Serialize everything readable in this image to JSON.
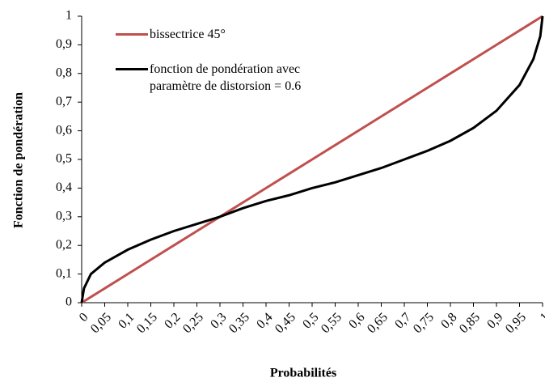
{
  "chart_data": {
    "type": "line",
    "xlabel": "Probabilités",
    "ylabel": "Fonction de pondération",
    "x": [
      0,
      0.005,
      0.02,
      0.05,
      0.1,
      0.15,
      0.2,
      0.25,
      0.3,
      0.35,
      0.4,
      0.45,
      0.5,
      0.55,
      0.6,
      0.65,
      0.7,
      0.75,
      0.8,
      0.85,
      0.9,
      0.95,
      0.98,
      0.995,
      1
    ],
    "series": [
      {
        "name": "bissectrice 45°",
        "color": "#c0504d",
        "values": [
          0,
          0.005,
          0.02,
          0.05,
          0.1,
          0.15,
          0.2,
          0.25,
          0.3,
          0.35,
          0.4,
          0.45,
          0.5,
          0.55,
          0.6,
          0.65,
          0.7,
          0.75,
          0.8,
          0.85,
          0.9,
          0.95,
          0.98,
          0.995,
          1
        ]
      },
      {
        "name": "fonction de pondération avec paramètre de distorsion = 0.6",
        "color": "#000000",
        "values": [
          0,
          0.05,
          0.1,
          0.14,
          0.185,
          0.22,
          0.25,
          0.275,
          0.3,
          0.33,
          0.355,
          0.375,
          0.4,
          0.42,
          0.445,
          0.47,
          0.5,
          0.53,
          0.565,
          0.61,
          0.67,
          0.76,
          0.85,
          0.93,
          1
        ]
      }
    ],
    "xlim": [
      0,
      1
    ],
    "ylim": [
      0,
      1
    ],
    "xticks": [
      0,
      {
        "value": 0.05,
        "label": "0,05"
      },
      {
        "value": 0.1,
        "label": "0,1"
      },
      {
        "value": 0.15,
        "label": "0,15"
      },
      {
        "value": 0.2,
        "label": "0,2"
      },
      {
        "value": 0.25,
        "label": "0,25"
      },
      {
        "value": 0.3,
        "label": "0,3"
      },
      {
        "value": 0.35,
        "label": "0,35"
      },
      {
        "value": 0.4,
        "label": "0,4"
      },
      {
        "value": 0.45,
        "label": "0,45"
      },
      {
        "value": 0.5,
        "label": "0,5"
      },
      {
        "value": 0.55,
        "label": "0,55"
      },
      {
        "value": 0.6,
        "label": "0,6"
      },
      {
        "value": 0.65,
        "label": "0,65"
      },
      {
        "value": 0.7,
        "label": "0,7"
      },
      {
        "value": 0.75,
        "label": "0,75"
      },
      {
        "value": 0.8,
        "label": "0,8"
      },
      {
        "value": 0.85,
        "label": "0,85"
      },
      {
        "value": 0.9,
        "label": "0,9"
      },
      {
        "value": 0.95,
        "label": "0,95"
      },
      1
    ],
    "yticks": [
      0,
      {
        "value": 0.1,
        "label": "0,1"
      },
      {
        "value": 0.2,
        "label": "0,2"
      },
      {
        "value": 0.3,
        "label": "0,3"
      },
      {
        "value": 0.4,
        "label": "0,4"
      },
      {
        "value": 0.5,
        "label": "0,5"
      },
      {
        "value": 0.6,
        "label": "0,6"
      },
      {
        "value": 0.7,
        "label": "0,7"
      },
      {
        "value": 0.8,
        "label": "0,8"
      },
      {
        "value": 0.9,
        "label": "0,9"
      },
      1
    ],
    "grid": false
  }
}
